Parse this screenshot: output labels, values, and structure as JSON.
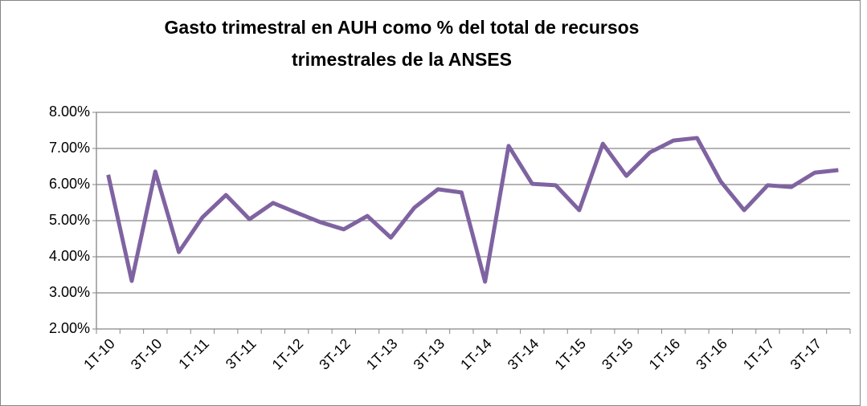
{
  "chart_data": {
    "type": "line",
    "title": [
      "Gasto trimestral en AUH como % del total de recursos",
      "trimestrales de la ANSES"
    ],
    "categories": [
      "1T-10",
      null,
      "3T-10",
      null,
      "1T-11",
      null,
      "3T-11",
      null,
      "1T-12",
      null,
      "3T-12",
      null,
      "1T-13",
      null,
      "3T-13",
      null,
      "1T-14",
      null,
      "3T-14",
      null,
      "1T-15",
      null,
      "3T-15",
      null,
      "1T-16",
      null,
      "3T-16",
      null,
      "1T-17",
      null,
      "3T-17",
      null
    ],
    "series": [
      {
        "color": "#7f63a1",
        "values": [
          6.27,
          3.33,
          6.36,
          4.13,
          5.09,
          5.71,
          5.04,
          5.49,
          5.22,
          4.96,
          4.76,
          5.13,
          4.53,
          5.36,
          5.87,
          5.78,
          3.31,
          7.07,
          6.02,
          5.98,
          5.29,
          7.13,
          6.24,
          6.89,
          7.22,
          7.29,
          6.09,
          5.29,
          5.98,
          5.93,
          6.33,
          6.4
        ]
      }
    ],
    "ylim": [
      2,
      8
    ],
    "yticks": [
      {
        "value": 2,
        "label": "2.00%"
      },
      {
        "value": 3,
        "label": "3.00%"
      },
      {
        "value": 4,
        "label": "4.00%"
      },
      {
        "value": 5,
        "label": "5.00%"
      },
      {
        "value": 6,
        "label": "6.00%"
      },
      {
        "value": 7,
        "label": "7.00%"
      },
      {
        "value": 8,
        "label": "8.00%"
      }
    ],
    "grid": true
  }
}
